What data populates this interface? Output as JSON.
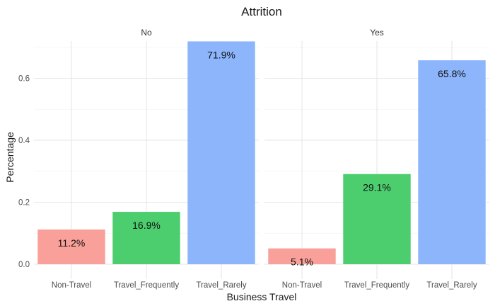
{
  "chart_data": {
    "type": "bar",
    "title": "Attrition",
    "xlabel": "Business Travel",
    "ylabel": "Percentage",
    "ylim": [
      0,
      0.72
    ],
    "yticks": [
      0.0,
      0.2,
      0.4,
      0.6
    ],
    "ytick_labels": [
      "0.0",
      "0.2",
      "0.4",
      "0.6"
    ],
    "grid": true,
    "legend": "none",
    "categories": [
      "Non-Travel",
      "Travel_Frequently",
      "Travel_Rarely"
    ],
    "colors": {
      "Non-Travel": "#f8a099",
      "Travel_Frequently": "#4cce6e",
      "Travel_Rarely": "#8cb5fc"
    },
    "facets": [
      {
        "name": "No",
        "values": [
          0.112,
          0.169,
          0.719
        ],
        "labels": [
          "11.2%",
          "16.9%",
          "71.9%"
        ]
      },
      {
        "name": "Yes",
        "values": [
          0.051,
          0.291,
          0.658
        ],
        "labels": [
          "5.1%",
          "29.1%",
          "65.8%"
        ]
      }
    ]
  }
}
